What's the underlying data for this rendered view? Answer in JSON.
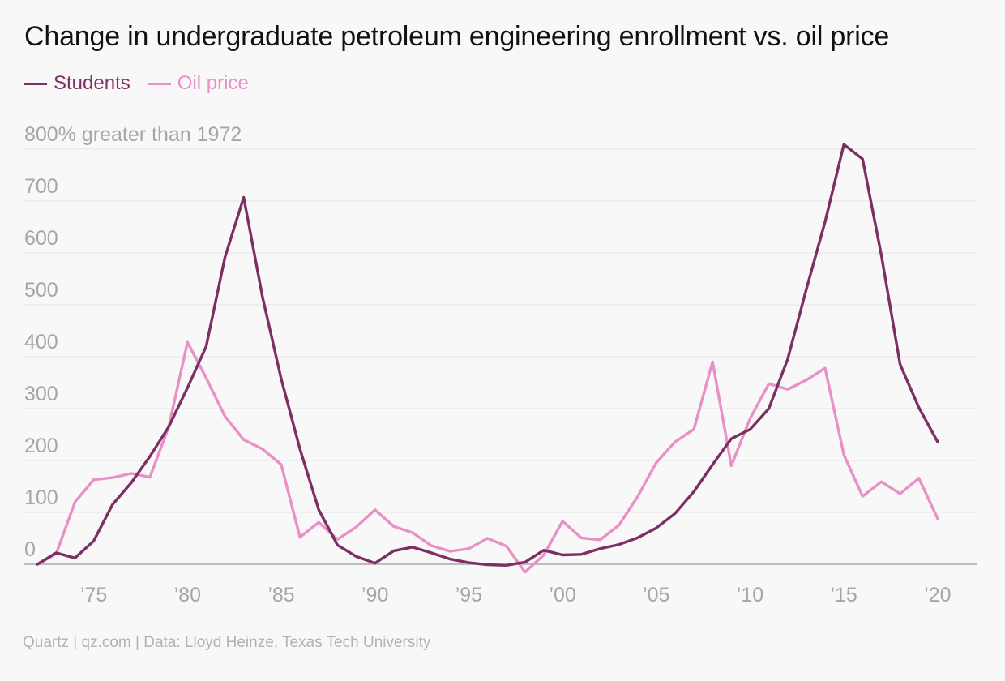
{
  "title": "Change in undergraduate petroleum engineering enrollment vs. oil price",
  "source": "Quartz | qz.com | Data: Lloyd Heinze, Texas Tech University",
  "chart_data": {
    "type": "line",
    "title": "Change in undergraduate petroleum engineering enrollment vs. oil price",
    "ylabel": "",
    "xlabel": "",
    "ylim": [
      0,
      800
    ],
    "xlim": [
      1971.3,
      2021
    ],
    "grid": true,
    "legend_position": "top-left",
    "y_ticks": [
      0,
      100,
      200,
      300,
      400,
      500,
      600,
      700,
      800
    ],
    "y_tick_labels": [
      "0",
      "100",
      "200",
      "300",
      "400",
      "500",
      "600",
      "700",
      "800% greater than 1972"
    ],
    "x_ticks": [
      1975,
      1980,
      1985,
      1990,
      1995,
      2000,
      2005,
      2010,
      2015,
      2020
    ],
    "x_tick_labels": [
      "’75",
      "’80",
      "’85",
      "’90",
      "’95",
      "’00",
      "’05",
      "’10",
      "’15",
      "’20"
    ],
    "series": [
      {
        "name": "Students",
        "color": "#7c2f63",
        "x": [
          1972,
          1973,
          1974,
          1975,
          1976,
          1977,
          1978,
          1979,
          1980,
          1981,
          1982,
          1983,
          1984,
          1985,
          1986,
          1987,
          1988,
          1989,
          1990,
          1991,
          1992,
          1993,
          1994,
          1995,
          1996,
          1997,
          1998,
          1999,
          2000,
          2001,
          2002,
          2003,
          2004,
          2005,
          2006,
          2007,
          2008,
          2009,
          2010,
          2011,
          2012,
          2013,
          2014,
          2015,
          2016,
          2017,
          2018,
          2019,
          2020
        ],
        "values": [
          0,
          22,
          12,
          45,
          115,
          157,
          208,
          265,
          340,
          420,
          592,
          707,
          515,
          357,
          222,
          105,
          37,
          15,
          2,
          26,
          33,
          22,
          10,
          3,
          -1,
          -2,
          4,
          27,
          18,
          19,
          30,
          38,
          51,
          70,
          98,
          140,
          192,
          242,
          260,
          300,
          395,
          530,
          660,
          809,
          781,
          596,
          385,
          302,
          236
        ]
      },
      {
        "name": "Oil price",
        "color": "#e990c6",
        "x": [
          1972,
          1973,
          1974,
          1975,
          1976,
          1977,
          1978,
          1979,
          1980,
          1981,
          1982,
          1983,
          1984,
          1985,
          1986,
          1987,
          1988,
          1989,
          1990,
          1991,
          1992,
          1993,
          1994,
          1995,
          1996,
          1997,
          1998,
          1999,
          2000,
          2001,
          2002,
          2003,
          2004,
          2005,
          2006,
          2007,
          2008,
          2009,
          2010,
          2011,
          2012,
          2013,
          2014,
          2015,
          2016,
          2017,
          2018,
          2019,
          2020
        ],
        "values": [
          0,
          20,
          120,
          163,
          167,
          175,
          168,
          265,
          428,
          359,
          285,
          240,
          222,
          192,
          52,
          81,
          48,
          72,
          105,
          73,
          61,
          36,
          25,
          30,
          50,
          35,
          -15,
          18,
          83,
          51,
          47,
          75,
          130,
          196,
          236,
          260,
          390,
          190,
          281,
          348,
          337,
          355,
          378,
          211,
          131,
          159,
          136,
          166,
          88
        ]
      }
    ]
  }
}
